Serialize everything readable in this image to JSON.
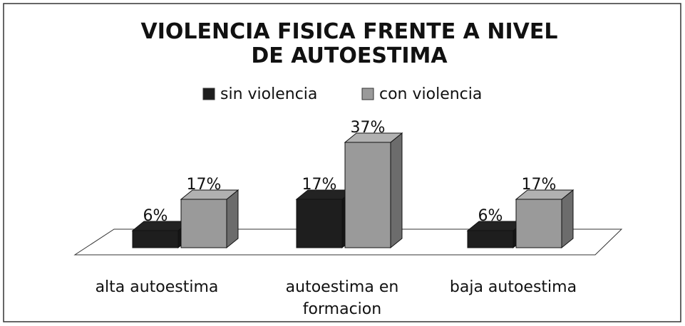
{
  "chart_data": {
    "type": "bar3d",
    "title": "VIOLENCIA FISICA FRENTE A NIVEL DE AUTOESTIMA",
    "categories": [
      "alta autoestima",
      "autoestima en formacion",
      "baja autoestima"
    ],
    "series": [
      {
        "name": "sin violencia",
        "color": "#1e1e1e",
        "values": [
          6,
          17,
          6
        ],
        "value_labels": [
          "6%",
          "17%",
          "6%"
        ]
      },
      {
        "name": "con violencia",
        "color": "#9a9a9a",
        "values": [
          17,
          37,
          17
        ],
        "value_labels": [
          "17%",
          "37%",
          "17%"
        ]
      }
    ]
  }
}
